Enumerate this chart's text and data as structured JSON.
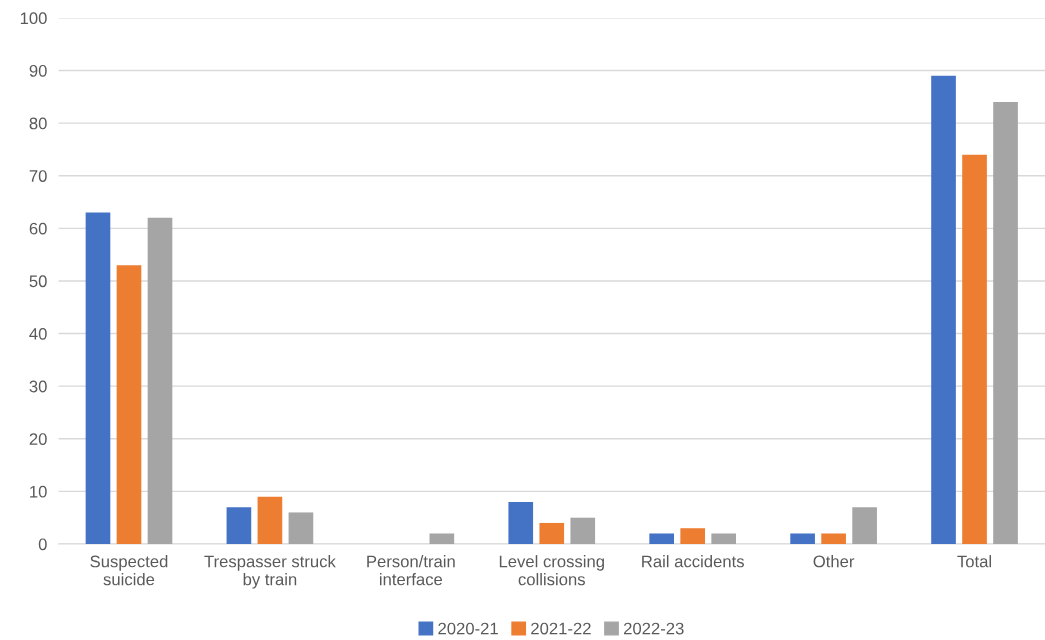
{
  "chart_data": {
    "type": "bar",
    "categories": [
      "Suspected\nsuicide",
      "Trespasser struck\nby train",
      "Person/train\ninterface",
      "Level crossing\ncollisions",
      "Rail accidents",
      "Other",
      "Total"
    ],
    "series": [
      {
        "name": "2020-21",
        "color": "#4472c4",
        "values": [
          63,
          7,
          null,
          8,
          2,
          2,
          89
        ]
      },
      {
        "name": "2021-22",
        "color": "#ed7d31",
        "values": [
          53,
          9,
          null,
          4,
          3,
          2,
          74
        ]
      },
      {
        "name": "2022-23",
        "color": "#a5a5a5",
        "values": [
          62,
          6,
          2,
          5,
          2,
          7,
          84
        ]
      }
    ],
    "ylim": [
      0,
      100
    ],
    "yticks": [
      0,
      10,
      20,
      30,
      40,
      50,
      60,
      70,
      80,
      90,
      100
    ],
    "grid": "y",
    "legend": "bottom"
  }
}
